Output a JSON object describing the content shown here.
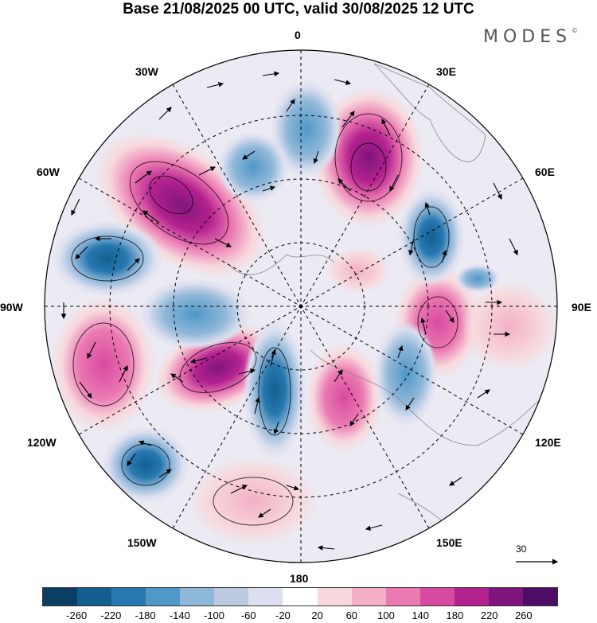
{
  "header": {
    "title": "Base 21/08/2025 00 UTC, valid 30/08/2025 12 UTC",
    "brand": "MODES"
  },
  "longitude_labels": [
    "0",
    "30E",
    "60E",
    "90E",
    "120E",
    "150E",
    "180",
    "150W",
    "120W",
    "90W",
    "60W",
    "30W"
  ],
  "wind_reference": "30",
  "colorbar": {
    "ticks": [
      "-260",
      "-220",
      "-180",
      "-140",
      "-100",
      "-60",
      "-20",
      "20",
      "60",
      "100",
      "140",
      "180",
      "220",
      "260"
    ],
    "colors": [
      "#0a3f63",
      "#135f90",
      "#2778b0",
      "#4f98c8",
      "#8fb7d8",
      "#bccadf",
      "#dcdfef",
      "#ffffff",
      "#f7d8dc",
      "#f3b0c4",
      "#eb79b2",
      "#d84aa1",
      "#b4228f",
      "#7e157c",
      "#4d0c66"
    ]
  }
}
